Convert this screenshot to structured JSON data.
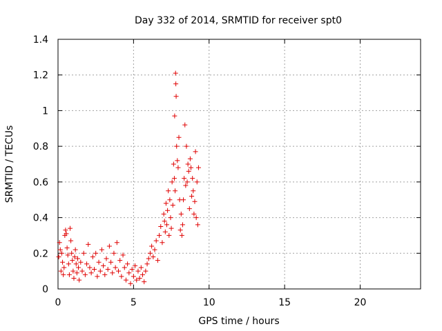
{
  "chart_data": {
    "type": "scatter",
    "title": "Day 332 of 2014, SRMTID for receiver spt0",
    "xlabel": "GPS time / hours",
    "ylabel": "SRMTID / TECUs",
    "xlim": [
      0,
      24
    ],
    "ylim": [
      0,
      1.4
    ],
    "x_ticks": [
      0,
      5,
      10,
      15,
      20
    ],
    "x_tick_labels": [
      "0",
      "5",
      "10",
      "15",
      "20"
    ],
    "y_ticks": [
      0,
      0.2,
      0.4,
      0.6,
      0.8,
      1,
      1.2,
      1.4
    ],
    "y_tick_labels": [
      "0",
      "0.2",
      "0.4",
      "0.6",
      "0.8",
      "1",
      "1.2",
      "1.4"
    ],
    "grid": true,
    "marker": "+",
    "series": [
      {
        "name": "SRMTID",
        "color": "#e00000",
        "points": [
          [
            0.05,
            0.18
          ],
          [
            0.1,
            0.26
          ],
          [
            0.15,
            0.22
          ],
          [
            0.2,
            0.1
          ],
          [
            0.25,
            0.2
          ],
          [
            0.3,
            0.15
          ],
          [
            0.35,
            0.08
          ],
          [
            0.4,
            0.12
          ],
          [
            0.45,
            0.3
          ],
          [
            0.5,
            0.33
          ],
          [
            0.55,
            0.31
          ],
          [
            0.6,
            0.23
          ],
          [
            0.65,
            0.19
          ],
          [
            0.7,
            0.14
          ],
          [
            0.75,
            0.08
          ],
          [
            0.8,
            0.34
          ],
          [
            0.85,
            0.27
          ],
          [
            0.9,
            0.2
          ],
          [
            0.95,
            0.16
          ],
          [
            1.0,
            0.1
          ],
          [
            1.05,
            0.06
          ],
          [
            1.1,
            0.18
          ],
          [
            1.15,
            0.22
          ],
          [
            1.2,
            0.14
          ],
          [
            1.25,
            0.09
          ],
          [
            1.3,
            0.17
          ],
          [
            1.35,
            0.12
          ],
          [
            1.4,
            0.05
          ],
          [
            1.5,
            0.15
          ],
          [
            1.6,
            0.1
          ],
          [
            1.7,
            0.2
          ],
          [
            1.8,
            0.08
          ],
          [
            1.9,
            0.14
          ],
          [
            2.0,
            0.25
          ],
          [
            2.1,
            0.12
          ],
          [
            2.2,
            0.09
          ],
          [
            2.3,
            0.18
          ],
          [
            2.4,
            0.11
          ],
          [
            2.5,
            0.2
          ],
          [
            2.6,
            0.07
          ],
          [
            2.7,
            0.15
          ],
          [
            2.8,
            0.1
          ],
          [
            2.9,
            0.22
          ],
          [
            3.0,
            0.13
          ],
          [
            3.1,
            0.08
          ],
          [
            3.2,
            0.17
          ],
          [
            3.3,
            0.11
          ],
          [
            3.4,
            0.24
          ],
          [
            3.5,
            0.15
          ],
          [
            3.6,
            0.09
          ],
          [
            3.7,
            0.2
          ],
          [
            3.8,
            0.12
          ],
          [
            3.9,
            0.26
          ],
          [
            4.0,
            0.1
          ],
          [
            4.1,
            0.16
          ],
          [
            4.2,
            0.07
          ],
          [
            4.3,
            0.19
          ],
          [
            4.4,
            0.12
          ],
          [
            4.5,
            0.05
          ],
          [
            4.6,
            0.14
          ],
          [
            4.7,
            0.09
          ],
          [
            4.8,
            0.03
          ],
          [
            4.9,
            0.11
          ],
          [
            5.0,
            0.07
          ],
          [
            5.1,
            0.13
          ],
          [
            5.2,
            0.05
          ],
          [
            5.3,
            0.1
          ],
          [
            5.4,
            0.06
          ],
          [
            5.5,
            0.12
          ],
          [
            5.6,
            0.08
          ],
          [
            5.7,
            0.04
          ],
          [
            5.8,
            0.1
          ],
          [
            5.9,
            0.14
          ],
          [
            6.0,
            0.17
          ],
          [
            6.1,
            0.2
          ],
          [
            6.2,
            0.24
          ],
          [
            6.3,
            0.18
          ],
          [
            6.4,
            0.22
          ],
          [
            6.5,
            0.27
          ],
          [
            6.6,
            0.16
          ],
          [
            6.7,
            0.3
          ],
          [
            6.8,
            0.35
          ],
          [
            6.9,
            0.26
          ],
          [
            7.0,
            0.42
          ],
          [
            7.05,
            0.38
          ],
          [
            7.1,
            0.32
          ],
          [
            7.15,
            0.48
          ],
          [
            7.2,
            0.36
          ],
          [
            7.25,
            0.44
          ],
          [
            7.3,
            0.55
          ],
          [
            7.35,
            0.3
          ],
          [
            7.4,
            0.5
          ],
          [
            7.45,
            0.4
          ],
          [
            7.5,
            0.34
          ],
          [
            7.55,
            0.6
          ],
          [
            7.6,
            0.47
          ],
          [
            7.65,
            0.7
          ],
          [
            7.7,
            0.62
          ],
          [
            7.72,
            0.97
          ],
          [
            7.75,
            0.55
          ],
          [
            7.78,
            1.21
          ],
          [
            7.8,
            1.15
          ],
          [
            7.82,
            1.08
          ],
          [
            7.85,
            0.8
          ],
          [
            7.9,
            0.72
          ],
          [
            7.95,
            0.68
          ],
          [
            8.0,
            0.85
          ],
          [
            8.05,
            0.5
          ],
          [
            8.1,
            0.33
          ],
          [
            8.15,
            0.42
          ],
          [
            8.2,
            0.3
          ],
          [
            8.25,
            0.36
          ],
          [
            8.3,
            0.5
          ],
          [
            8.35,
            0.62
          ],
          [
            8.4,
            0.92
          ],
          [
            8.45,
            0.58
          ],
          [
            8.5,
            0.8
          ],
          [
            8.55,
            0.6
          ],
          [
            8.6,
            0.7
          ],
          [
            8.65,
            0.66
          ],
          [
            8.7,
            0.45
          ],
          [
            8.75,
            0.73
          ],
          [
            8.8,
            0.68
          ],
          [
            8.85,
            0.52
          ],
          [
            8.9,
            0.62
          ],
          [
            8.95,
            0.55
          ],
          [
            9.0,
            0.42
          ],
          [
            9.05,
            0.49
          ],
          [
            9.1,
            0.77
          ],
          [
            9.15,
            0.4
          ],
          [
            9.2,
            0.6
          ],
          [
            9.25,
            0.36
          ],
          [
            9.3,
            0.68
          ]
        ]
      }
    ]
  }
}
